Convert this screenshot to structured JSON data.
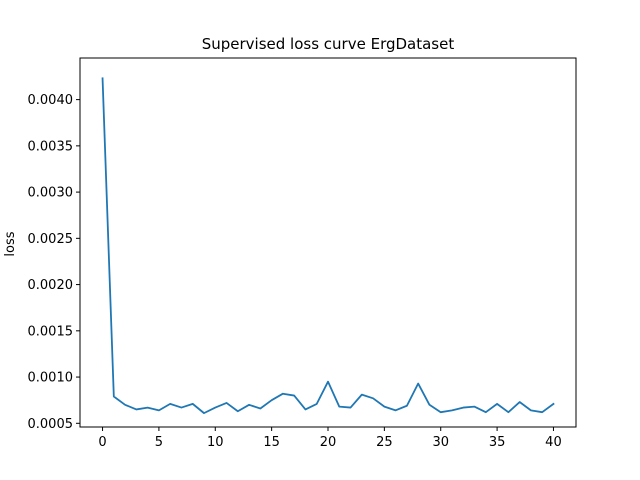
{
  "chart_data": {
    "type": "line",
    "title": "Supervised loss curve ErgDataset",
    "xlabel": "",
    "ylabel": "loss",
    "xlim": [
      -2,
      42
    ],
    "ylim": [
      0.00046,
      0.00445
    ],
    "xticks": [
      0,
      5,
      10,
      15,
      20,
      25,
      30,
      35,
      40
    ],
    "yticks": [
      0.0005,
      0.001,
      0.0015,
      0.002,
      0.0025,
      0.003,
      0.0035,
      0.004
    ],
    "xtick_labels": [
      "0",
      "5",
      "10",
      "15",
      "20",
      "25",
      "30",
      "35",
      "40"
    ],
    "ytick_labels": [
      "0.0005",
      "0.0010",
      "0.0015",
      "0.0020",
      "0.0025",
      "0.0030",
      "0.0035",
      "0.0040"
    ],
    "grid": false,
    "colors": {
      "line": "#1f77b4",
      "axes": "#000000",
      "background": "#ffffff"
    },
    "series": [
      {
        "x": [
          0,
          1,
          2,
          3,
          4,
          5,
          6,
          7,
          8,
          9,
          10,
          11,
          12,
          13,
          14,
          15,
          16,
          17,
          18,
          19,
          20,
          21,
          22,
          23,
          24,
          25,
          26,
          27,
          28,
          29,
          30,
          31,
          32,
          33,
          34,
          35,
          36,
          37,
          38,
          39,
          40
        ],
        "values": [
          0.00423,
          0.00079,
          0.0007,
          0.00065,
          0.00067,
          0.00064,
          0.00071,
          0.00067,
          0.00071,
          0.00061,
          0.00067,
          0.00072,
          0.00063,
          0.0007,
          0.00066,
          0.00075,
          0.00082,
          0.0008,
          0.00065,
          0.00071,
          0.00095,
          0.00068,
          0.00067,
          0.00081,
          0.00077,
          0.00068,
          0.00064,
          0.00069,
          0.00093,
          0.0007,
          0.00062,
          0.00064,
          0.00067,
          0.00068,
          0.00062,
          0.00071,
          0.00062,
          0.00073,
          0.00064,
          0.00062,
          0.00071
        ]
      }
    ]
  }
}
